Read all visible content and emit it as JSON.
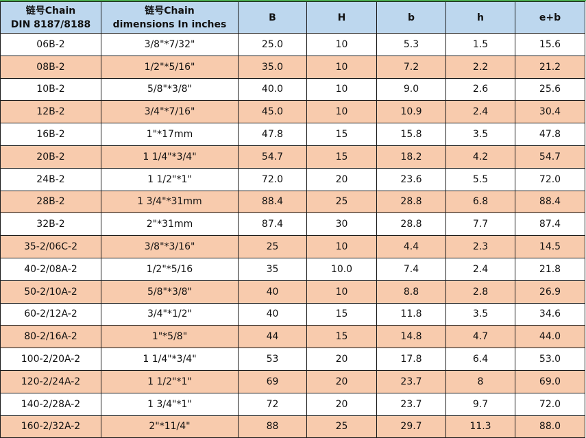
{
  "colors": {
    "header_bg": "#BDD7EE",
    "alt_row_bg": "#F8CBAD",
    "top_border": "#4CAF50"
  },
  "headers": [
    [
      "链号Chain",
      "DIN 8187/8188"
    ],
    [
      "链号Chain",
      "dimensions In inches"
    ],
    [
      "B"
    ],
    [
      "H"
    ],
    [
      "b"
    ],
    [
      "h"
    ],
    [
      "e+b"
    ]
  ],
  "rows": [
    [
      "06B-2",
      "3/8\"*7/32\"",
      "25.0",
      "10",
      "5.3",
      "1.5",
      "15.6"
    ],
    [
      "08B-2",
      "1/2\"*5/16\"",
      "35.0",
      "10",
      "7.2",
      "2.2",
      "21.2"
    ],
    [
      "10B-2",
      "5/8\"*3/8\"",
      "40.0",
      "10",
      "9.0",
      "2.6",
      "25.6"
    ],
    [
      "12B-2",
      "3/4\"*7/16\"",
      "45.0",
      "10",
      "10.9",
      "2.4",
      "30.4"
    ],
    [
      "16B-2",
      "1\"*17mm",
      "47.8",
      "15",
      "15.8",
      "3.5",
      "47.8"
    ],
    [
      "20B-2",
      "1 1/4\"*3/4\"",
      "54.7",
      "15",
      "18.2",
      "4.2",
      "54.7"
    ],
    [
      "24B-2",
      "1 1/2\"*1\"",
      "72.0",
      "20",
      "23.6",
      "5.5",
      "72.0"
    ],
    [
      "28B-2",
      "1 3/4\"*31mm",
      "88.4",
      "25",
      "28.8",
      "6.8",
      "88.4"
    ],
    [
      "32B-2",
      "2\"*31mm",
      "87.4",
      "30",
      "28.8",
      "7.7",
      "87.4"
    ],
    [
      "35-2/06C-2",
      "3/8\"*3/16\"",
      "25",
      "10",
      "4.4",
      "2.3",
      "14.5"
    ],
    [
      "40-2/08A-2",
      "1/2\"*5/16",
      "35",
      "10.0",
      "7.4",
      "2.4",
      "21.8"
    ],
    [
      "50-2/10A-2",
      "5/8\"*3/8\"",
      "40",
      "10",
      "8.8",
      "2.8",
      "26.9"
    ],
    [
      "60-2/12A-2",
      "3/4\"*1/2\"",
      "40",
      "15",
      "11.8",
      "3.5",
      "34.6"
    ],
    [
      "80-2/16A-2",
      "1\"*5/8\"",
      "44",
      "15",
      "14.8",
      "4.7",
      "44.0"
    ],
    [
      "100-2/20A-2",
      "1 1/4\"*3/4\"",
      "53",
      "20",
      "17.8",
      "6.4",
      "53.0"
    ],
    [
      "120-2/24A-2",
      "1 1/2\"*1\"",
      "69",
      "20",
      "23.7",
      "8",
      "69.0"
    ],
    [
      "140-2/28A-2",
      "1 3/4\"*1\"",
      "72",
      "20",
      "23.7",
      "9.7",
      "72.0"
    ],
    [
      "160-2/32A-2",
      "2\"*11/4\"",
      "88",
      "25",
      "29.7",
      "11.3",
      "88.0"
    ]
  ]
}
